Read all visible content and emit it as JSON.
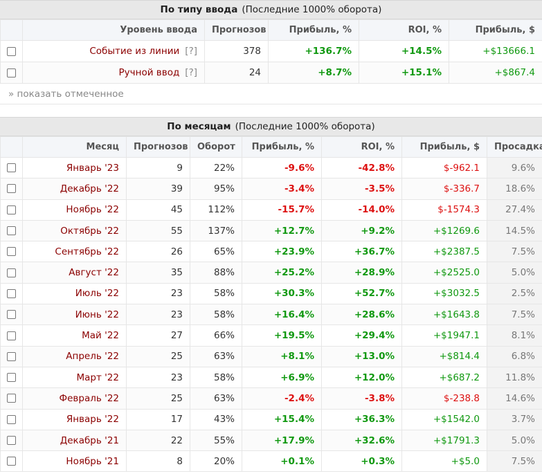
{
  "input_block": {
    "title": "По типу ввода",
    "subtitle": "(Последние 1000% оборота)",
    "columns": [
      "Уровень ввода",
      "Прогнозов",
      "Прибыль, %",
      "ROI, %",
      "Прибыль, $"
    ],
    "rows": [
      {
        "label": "Событие из линии",
        "hint": "[?]",
        "forecasts": "378",
        "profit_pct": "+136.7%",
        "roi": "+14.5%",
        "profit_usd": "+$13666.1"
      },
      {
        "label": "Ручной ввод",
        "hint": "[?]",
        "forecasts": "24",
        "profit_pct": "+8.7%",
        "roi": "+15.1%",
        "profit_usd": "+$867.4"
      }
    ],
    "show_marked": "» показать отмеченное"
  },
  "month_block": {
    "title": "По месяцам",
    "subtitle": "(Последние 1000% оборота)",
    "columns": [
      "Месяц",
      "Прогнозов",
      "Оборот",
      "Прибыль, %",
      "ROI, %",
      "Прибыль, $",
      "Просадка"
    ],
    "rows": [
      {
        "month": "Январь '23",
        "forecasts": "9",
        "turnover": "22%",
        "profit_pct": "-9.6%",
        "roi": "-42.8%",
        "profit_usd": "$-962.1",
        "drawdown": "9.6%"
      },
      {
        "month": "Декабрь '22",
        "forecasts": "39",
        "turnover": "95%",
        "profit_pct": "-3.4%",
        "roi": "-3.5%",
        "profit_usd": "$-336.7",
        "drawdown": "18.6%"
      },
      {
        "month": "Ноябрь '22",
        "forecasts": "45",
        "turnover": "112%",
        "profit_pct": "-15.7%",
        "roi": "-14.0%",
        "profit_usd": "$-1574.3",
        "drawdown": "27.4%"
      },
      {
        "month": "Октябрь '22",
        "forecasts": "55",
        "turnover": "137%",
        "profit_pct": "+12.7%",
        "roi": "+9.2%",
        "profit_usd": "+$1269.6",
        "drawdown": "14.5%"
      },
      {
        "month": "Сентябрь '22",
        "forecasts": "26",
        "turnover": "65%",
        "profit_pct": "+23.9%",
        "roi": "+36.7%",
        "profit_usd": "+$2387.5",
        "drawdown": "7.5%"
      },
      {
        "month": "Август '22",
        "forecasts": "35",
        "turnover": "88%",
        "profit_pct": "+25.2%",
        "roi": "+28.9%",
        "profit_usd": "+$2525.0",
        "drawdown": "5.0%"
      },
      {
        "month": "Июль '22",
        "forecasts": "23",
        "turnover": "58%",
        "profit_pct": "+30.3%",
        "roi": "+52.7%",
        "profit_usd": "+$3032.5",
        "drawdown": "2.5%"
      },
      {
        "month": "Июнь '22",
        "forecasts": "23",
        "turnover": "58%",
        "profit_pct": "+16.4%",
        "roi": "+28.6%",
        "profit_usd": "+$1643.8",
        "drawdown": "7.5%"
      },
      {
        "month": "Май '22",
        "forecasts": "27",
        "turnover": "66%",
        "profit_pct": "+19.5%",
        "roi": "+29.4%",
        "profit_usd": "+$1947.1",
        "drawdown": "8.1%"
      },
      {
        "month": "Апрель '22",
        "forecasts": "25",
        "turnover": "63%",
        "profit_pct": "+8.1%",
        "roi": "+13.0%",
        "profit_usd": "+$814.4",
        "drawdown": "6.8%"
      },
      {
        "month": "Март '22",
        "forecasts": "23",
        "turnover": "58%",
        "profit_pct": "+6.9%",
        "roi": "+12.0%",
        "profit_usd": "+$687.2",
        "drawdown": "11.8%"
      },
      {
        "month": "Февраль '22",
        "forecasts": "25",
        "turnover": "63%",
        "profit_pct": "-2.4%",
        "roi": "-3.8%",
        "profit_usd": "$-238.8",
        "drawdown": "14.6%"
      },
      {
        "month": "Январь '22",
        "forecasts": "17",
        "turnover": "43%",
        "profit_pct": "+15.4%",
        "roi": "+36.3%",
        "profit_usd": "+$1542.0",
        "drawdown": "3.7%"
      },
      {
        "month": "Декабрь '21",
        "forecasts": "22",
        "turnover": "55%",
        "profit_pct": "+17.9%",
        "roi": "+32.6%",
        "profit_usd": "+$1791.3",
        "drawdown": "5.0%"
      },
      {
        "month": "Ноябрь '21",
        "forecasts": "8",
        "turnover": "20%",
        "profit_pct": "+0.1%",
        "roi": "+0.3%",
        "profit_usd": "+$5.0",
        "drawdown": "7.5%"
      }
    ]
  },
  "colors": {
    "positive": "#119911",
    "negative": "#dd1111",
    "label": "#8b0000",
    "header_bg": "#e8e8e8"
  }
}
